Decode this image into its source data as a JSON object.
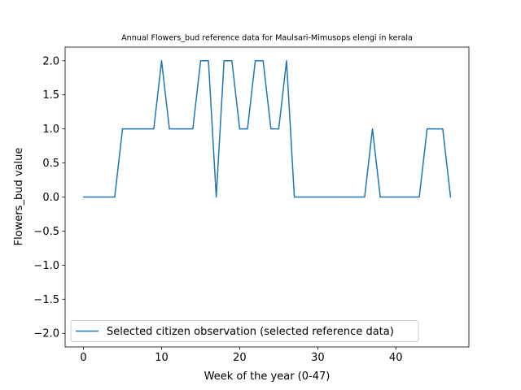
{
  "chart_data": {
    "type": "line",
    "title": "Annual Flowers_bud reference data for Maulsari-Mimusops elengi in kerala",
    "xlabel": "Week of the year (0-47)",
    "ylabel": "Flowers_bud value",
    "xlim": [
      -2.35,
      49.35
    ],
    "ylim": [
      -2.2,
      2.2
    ],
    "xticks": [
      0,
      10,
      20,
      30,
      40
    ],
    "yticks": [
      -2.0,
      -1.5,
      -1.0,
      -0.5,
      0.0,
      0.5,
      1.0,
      1.5,
      2.0
    ],
    "xtick_labels": [
      "0",
      "10",
      "20",
      "30",
      "40"
    ],
    "ytick_labels": [
      "−2.0",
      "−1.5",
      "−1.0",
      "−0.5",
      "0.0",
      "0.5",
      "1.0",
      "1.5",
      "2.0"
    ],
    "grid": false,
    "legend_position": "lower-left",
    "series": [
      {
        "name": "Selected citizen observation (selected reference data)",
        "color": "#1f77b4",
        "x": [
          0,
          1,
          2,
          3,
          4,
          5,
          6,
          7,
          8,
          9,
          10,
          11,
          12,
          13,
          14,
          15,
          16,
          17,
          18,
          19,
          20,
          21,
          22,
          23,
          24,
          25,
          26,
          27,
          28,
          29,
          30,
          31,
          32,
          33,
          34,
          35,
          36,
          37,
          38,
          39,
          40,
          41,
          42,
          43,
          44,
          45,
          46,
          47
        ],
        "values": [
          0,
          0,
          0,
          0,
          0,
          1,
          1,
          1,
          1,
          1,
          2,
          1,
          1,
          1,
          1,
          2,
          2,
          0,
          2,
          2,
          1,
          1,
          2,
          2,
          1,
          1,
          2,
          0,
          0,
          0,
          0,
          0,
          0,
          0,
          0,
          0,
          0,
          1,
          0,
          0,
          0,
          0,
          0,
          0,
          1,
          1,
          1,
          0
        ]
      }
    ]
  }
}
